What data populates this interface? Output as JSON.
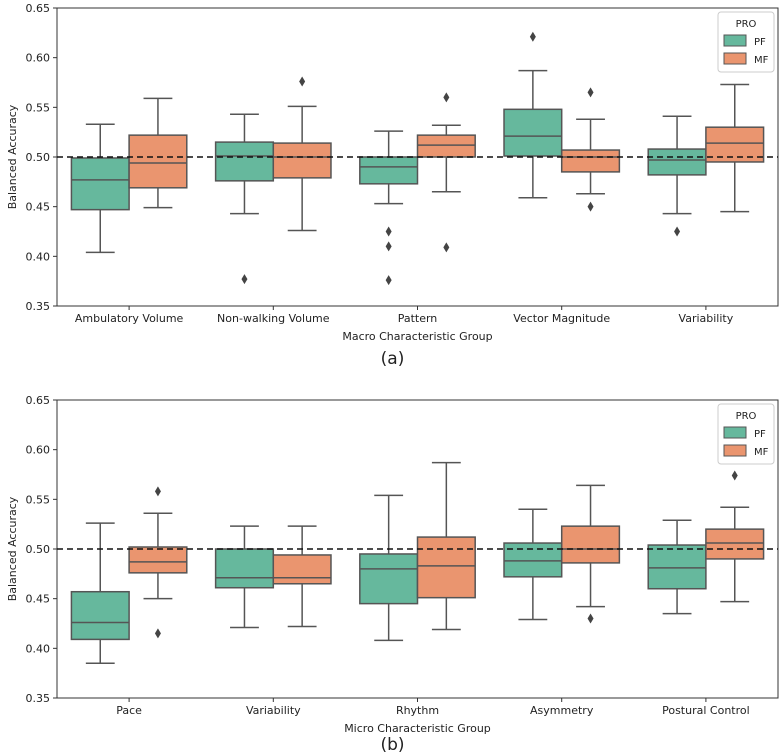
{
  "chart_data": [
    {
      "type": "box",
      "panel_label": "(a)",
      "title": "",
      "xlabel": "Macro Characteristic Group",
      "ylabel": "Balanced Accuracy",
      "ylim": [
        0.35,
        0.65
      ],
      "yticks": [
        "0.35",
        "0.40",
        "0.45",
        "0.50",
        "0.55",
        "0.60",
        "0.65"
      ],
      "reference_line": 0.5,
      "legend": {
        "title": "PRO",
        "placement": "top-right",
        "entries": [
          "PF",
          "MF"
        ]
      },
      "colors": {
        "PF": "#66b89d",
        "MF": "#ea956f"
      },
      "categories": [
        "Ambulatory Volume",
        "Non-walking Volume",
        "Pattern",
        "Vector Magnitude",
        "Variability"
      ],
      "series": [
        {
          "name": "PF",
          "boxes": [
            {
              "low": 0.404,
              "q1": 0.447,
              "median": 0.477,
              "q3": 0.499,
              "high": 0.533,
              "outliers": []
            },
            {
              "low": 0.443,
              "q1": 0.476,
              "median": 0.501,
              "q3": 0.515,
              "high": 0.543,
              "outliers": [
                0.377
              ]
            },
            {
              "low": 0.453,
              "q1": 0.473,
              "median": 0.49,
              "q3": 0.5,
              "high": 0.526,
              "outliers": [
                0.425,
                0.41,
                0.376
              ]
            },
            {
              "low": 0.459,
              "q1": 0.501,
              "median": 0.521,
              "q3": 0.548,
              "high": 0.587,
              "outliers": [
                0.621
              ]
            },
            {
              "low": 0.443,
              "q1": 0.482,
              "median": 0.497,
              "q3": 0.508,
              "high": 0.541,
              "outliers": [
                0.425
              ]
            }
          ]
        },
        {
          "name": "MF",
          "boxes": [
            {
              "low": 0.449,
              "q1": 0.469,
              "median": 0.494,
              "q3": 0.522,
              "high": 0.559,
              "outliers": []
            },
            {
              "low": 0.426,
              "q1": 0.479,
              "median": 0.5,
              "q3": 0.514,
              "high": 0.551,
              "outliers": [
                0.576
              ]
            },
            {
              "low": 0.465,
              "q1": 0.5,
              "median": 0.512,
              "q3": 0.522,
              "high": 0.532,
              "outliers": [
                0.56,
                0.409
              ]
            },
            {
              "low": 0.463,
              "q1": 0.485,
              "median": 0.5,
              "q3": 0.507,
              "high": 0.538,
              "outliers": [
                0.565,
                0.45
              ]
            },
            {
              "low": 0.445,
              "q1": 0.495,
              "median": 0.514,
              "q3": 0.53,
              "high": 0.573,
              "outliers": []
            }
          ]
        }
      ]
    },
    {
      "type": "box",
      "panel_label": "(b)",
      "title": "",
      "xlabel": "Micro Characteristic Group",
      "ylabel": "Balanced Accuracy",
      "ylim": [
        0.35,
        0.65
      ],
      "yticks": [
        "0.35",
        "0.40",
        "0.45",
        "0.50",
        "0.55",
        "0.60",
        "0.65"
      ],
      "reference_line": 0.5,
      "legend": {
        "title": "PRO",
        "placement": "top-right",
        "entries": [
          "PF",
          "MF"
        ]
      },
      "colors": {
        "PF": "#66b89d",
        "MF": "#ea956f"
      },
      "categories": [
        "Pace",
        "Variability",
        "Rhythm",
        "Asymmetry",
        "Postural Control"
      ],
      "series": [
        {
          "name": "PF",
          "boxes": [
            {
              "low": 0.385,
              "q1": 0.409,
              "median": 0.426,
              "q3": 0.457,
              "high": 0.526,
              "outliers": []
            },
            {
              "low": 0.421,
              "q1": 0.461,
              "median": 0.471,
              "q3": 0.5,
              "high": 0.523,
              "outliers": []
            },
            {
              "low": 0.408,
              "q1": 0.445,
              "median": 0.48,
              "q3": 0.495,
              "high": 0.554,
              "outliers": []
            },
            {
              "low": 0.429,
              "q1": 0.472,
              "median": 0.488,
              "q3": 0.506,
              "high": 0.54,
              "outliers": []
            },
            {
              "low": 0.435,
              "q1": 0.46,
              "median": 0.481,
              "q3": 0.504,
              "high": 0.529,
              "outliers": []
            }
          ]
        },
        {
          "name": "MF",
          "boxes": [
            {
              "low": 0.45,
              "q1": 0.476,
              "median": 0.487,
              "q3": 0.502,
              "high": 0.536,
              "outliers": [
                0.558,
                0.415
              ]
            },
            {
              "low": 0.422,
              "q1": 0.465,
              "median": 0.471,
              "q3": 0.494,
              "high": 0.523,
              "outliers": []
            },
            {
              "low": 0.419,
              "q1": 0.451,
              "median": 0.483,
              "q3": 0.512,
              "high": 0.587,
              "outliers": []
            },
            {
              "low": 0.442,
              "q1": 0.486,
              "median": 0.5,
              "q3": 0.523,
              "high": 0.564,
              "outliers": [
                0.43
              ]
            },
            {
              "low": 0.447,
              "q1": 0.49,
              "median": 0.506,
              "q3": 0.52,
              "high": 0.542,
              "outliers": [
                0.574
              ]
            }
          ]
        }
      ]
    }
  ]
}
